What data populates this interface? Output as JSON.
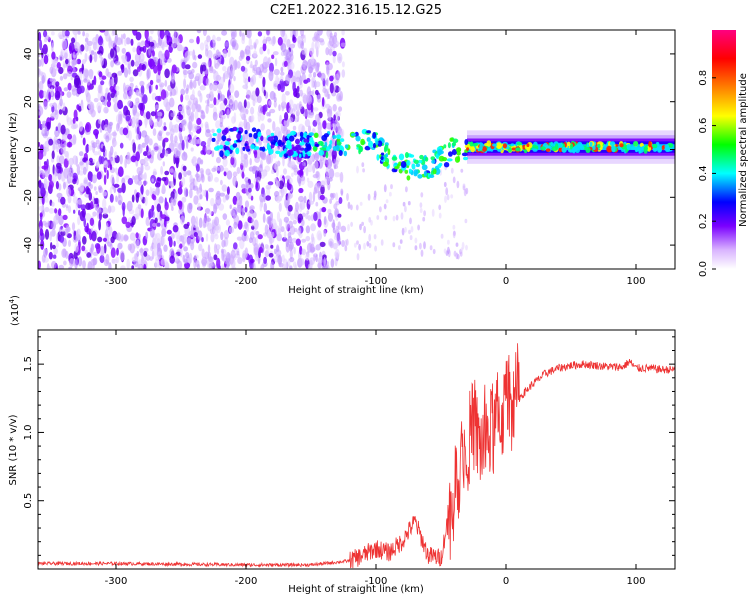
{
  "figure_title": "C2E1.2022.316.15.12.G25",
  "chart_data": [
    {
      "type": "heatmap",
      "title": "",
      "xlabel": "Height of straight line (km)",
      "ylabel": "Frequency (Hz)",
      "xlim": [
        -360,
        130
      ],
      "ylim": [
        -50,
        50
      ],
      "xticks": [
        -300,
        -200,
        -100,
        0,
        100
      ],
      "yticks": [
        -40,
        -20,
        0,
        20,
        40
      ],
      "colorbar": {
        "label": "Normalized spectral amplitude",
        "range": [
          0.0,
          1.0
        ],
        "ticks": [
          0.0,
          0.2,
          0.4,
          0.6,
          0.8
        ],
        "colormap": [
          "#ffffff",
          "#7a00ff",
          "#0000ff",
          "#00ffff",
          "#00ff00",
          "#ffff00",
          "#ff7f00",
          "#ff0000",
          "#ff0080"
        ]
      },
      "ridge": {
        "x": [
          -220,
          -200,
          -180,
          -150,
          -130,
          -110,
          -100,
          -90,
          -80,
          -70,
          -60,
          -50,
          -40,
          -30,
          -20,
          0,
          50,
          100,
          130
        ],
        "y": [
          3,
          4,
          2,
          2,
          3,
          3,
          2,
          -3,
          -6,
          -8,
          -8,
          -3,
          0,
          1,
          1,
          1,
          1,
          1,
          1
        ]
      }
    },
    {
      "type": "line",
      "title": "",
      "xlabel": "Height of straight line (km)",
      "ylabel": "SNR (10 * v/v)",
      "scale_label": "(x10",
      "scale_exp": "4",
      "scale_close": ")",
      "xlim": [
        -360,
        130
      ],
      "ylim": [
        0,
        17500
      ],
      "xticks": [
        -300,
        -200,
        -100,
        0,
        100
      ],
      "yticks": [
        5000,
        10000,
        15000
      ],
      "ytick_labels": [
        "0.5",
        "1.0",
        "1.5"
      ],
      "color": "#ee3333",
      "series": [
        {
          "x": [
            -360,
            -300,
            -250,
            -200,
            -150,
            -120,
            -110,
            -100,
            -90,
            -80,
            -70,
            -60,
            -50,
            -45,
            -40,
            -35,
            -30,
            -25,
            -20,
            -15,
            -10,
            -5,
            0,
            10,
            20,
            30,
            40,
            50,
            60,
            70,
            80,
            90,
            95,
            100,
            110,
            120,
            130
          ],
          "y": [
            400,
            400,
            350,
            300,
            300,
            600,
            1000,
            1500,
            1200,
            2000,
            3500,
            1000,
            800,
            3500,
            5000,
            8000,
            9000,
            10500,
            9000,
            9500,
            10000,
            11000,
            11800,
            12500,
            13500,
            14300,
            14700,
            14900,
            15000,
            14900,
            14800,
            14800,
            15200,
            14700,
            14700,
            14600,
            14600
          ]
        }
      ]
    }
  ]
}
